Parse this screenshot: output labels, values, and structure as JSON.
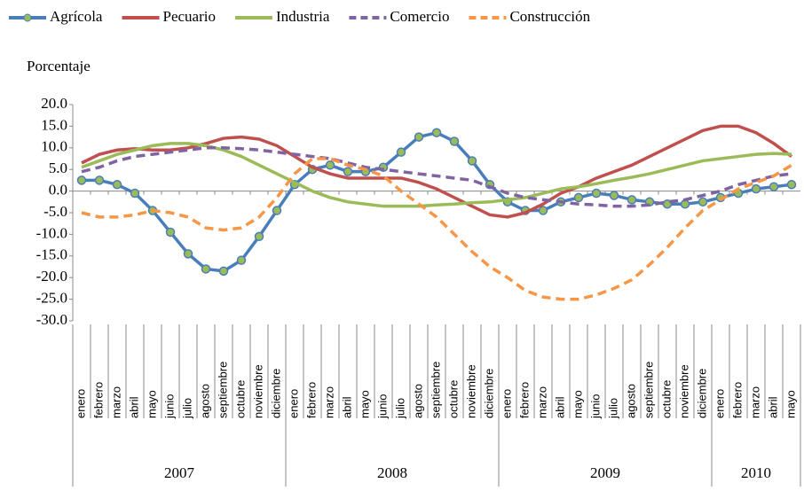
{
  "chart_data": {
    "type": "line",
    "y_label": "Porcentaje",
    "categories": [
      "enero",
      "febrero",
      "marzo",
      "abril",
      "mayo",
      "junio",
      "julio",
      "agosto",
      "septiembre",
      "octubre",
      "noviembre",
      "diciembre",
      "enero",
      "febrero",
      "marzo",
      "abril",
      "mayo",
      "junio",
      "julio",
      "agosto",
      "septiembre",
      "octubre",
      "noviembre",
      "diciembre",
      "enero",
      "febrero",
      "marzo",
      "abril",
      "mayo",
      "junio",
      "julio",
      "agosto",
      "septiembre",
      "octubre",
      "noviembre",
      "diciembre",
      "enero",
      "febrero",
      "marzo",
      "abril",
      "mayo"
    ],
    "years": [
      "2007",
      "2008",
      "2009",
      "2010"
    ],
    "ylim": [
      -30,
      20
    ],
    "yticks": [
      {
        "value": 20,
        "label": "20.0"
      },
      {
        "value": 15,
        "label": "15.0"
      },
      {
        "value": 10,
        "label": "10.0"
      },
      {
        "value": 5,
        "label": "5.0"
      },
      {
        "value": 0,
        "label": "0.0"
      },
      {
        "value": -5,
        "label": "-5.0"
      },
      {
        "value": -10,
        "label": "-10.0"
      },
      {
        "value": -15,
        "label": "-15.0"
      },
      {
        "value": -20,
        "label": "-20.0"
      },
      {
        "value": -25,
        "label": "-25.0"
      },
      {
        "value": -30,
        "label": "-30.0"
      }
    ],
    "series": [
      {
        "name": "Agrícola",
        "color": "#4a7ebb",
        "dash": false,
        "markers": true,
        "values": [
          2.5,
          2.5,
          1.5,
          -0.5,
          -4.5,
          -9.5,
          -14.5,
          -18,
          -18.5,
          -16,
          -10.5,
          -4.5,
          1.5,
          5,
          6,
          4.5,
          4.5,
          5.5,
          9,
          12.5,
          13.5,
          11.5,
          7,
          1.5,
          -2.5,
          -4.5,
          -4.5,
          -2.5,
          -1.5,
          -0.5,
          -1,
          -2,
          -2.5,
          -3,
          -3,
          -2.5,
          -1.5,
          -0.5,
          0.5,
          1,
          1.5
        ]
      },
      {
        "name": "Pecuario",
        "color": "#c0504d",
        "dash": false,
        "markers": false,
        "values": [
          6.5,
          8.5,
          9.5,
          9.8,
          9.5,
          9.5,
          10,
          11,
          12.2,
          12.5,
          12,
          10.5,
          8,
          5.5,
          4,
          3,
          3,
          3,
          3,
          2,
          0.5,
          -1.5,
          -3.5,
          -5.5,
          -6,
          -5,
          -3,
          -0.5,
          1,
          3,
          4.5,
          6,
          8,
          10,
          12,
          14,
          15,
          15,
          13.5,
          11,
          8
        ]
      },
      {
        "name": "Industria",
        "color": "#9bbb59",
        "dash": false,
        "markers": false,
        "values": [
          5.5,
          7,
          8.5,
          9.5,
          10.5,
          11,
          11,
          10.5,
          9.5,
          8,
          6,
          4,
          2,
          0,
          -1.5,
          -2.5,
          -3,
          -3.5,
          -3.5,
          -3.5,
          -3.2,
          -3,
          -2.7,
          -2.5,
          -2,
          -1.5,
          -0.5,
          0.5,
          1,
          1.7,
          2.5,
          3.2,
          4,
          5,
          6,
          7,
          7.5,
          8,
          8.5,
          8.7,
          8.5
        ]
      },
      {
        "name": "Comercio",
        "color": "#8064a2",
        "dash": true,
        "markers": false,
        "values": [
          4.5,
          5.5,
          7,
          8,
          8.5,
          9,
          9.5,
          10,
          10,
          9.8,
          9.5,
          9,
          8.5,
          8,
          7.5,
          6.5,
          5.5,
          5,
          4.5,
          4,
          3.5,
          3,
          2.5,
          1,
          -0.5,
          -1.5,
          -2,
          -2.5,
          -3,
          -3.2,
          -3.5,
          -3.5,
          -3.2,
          -2.5,
          -2,
          -1,
          0,
          1.5,
          2.5,
          3.5,
          4
        ]
      },
      {
        "name": "Construcción",
        "color": "#f79646",
        "dash": true,
        "markers": false,
        "values": [
          -5,
          -6,
          -6,
          -5.5,
          -4.5,
          -5,
          -6,
          -8.5,
          -9,
          -8.5,
          -6,
          -1.5,
          4,
          7.5,
          7.5,
          6,
          5,
          3.5,
          0,
          -3,
          -6,
          -10,
          -14,
          -17.5,
          -20,
          -23,
          -24.5,
          -25,
          -25,
          -24,
          -22.5,
          -20.5,
          -17,
          -13,
          -8.5,
          -4.5,
          -2,
          0.5,
          2,
          3.5,
          6
        ]
      }
    ]
  }
}
